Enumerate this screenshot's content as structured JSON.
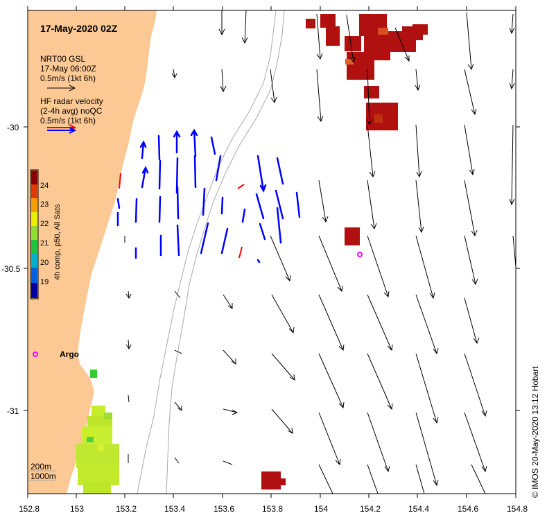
{
  "map": {
    "title": "17-May-2020 02Z",
    "model_legend": {
      "line1": "NRT00 GSL",
      "line2": "17-May 06:00Z",
      "line3": "0.5m/s (1kt 6h)"
    },
    "radar_legend": {
      "line1": "HF radar velocity",
      "line2": "(2-4h avg) noQC",
      "line3": "0.5m/s (1kt 6h)"
    },
    "colorbar": {
      "label": "4h comp, p50, All Sats",
      "ticks": [
        "24",
        "23",
        "22",
        "21",
        "20",
        "19"
      ]
    },
    "argo_label": "Argo",
    "depth_labels": {
      "a": "200m",
      "b": "1000m"
    },
    "credit": "© IMOS 20-May-2020 13:12 Hobart",
    "x_ticks": [
      "152.8",
      "153",
      "153.2",
      "153.4",
      "153.6",
      "153.8",
      "154",
      "154.2",
      "154.4",
      "154.6",
      "154.8"
    ],
    "y_ticks": [
      "-30",
      "-30.5",
      "-31"
    ],
    "colors": {
      "land": "#fcc894",
      "radar": "#0000ff",
      "argo": "#ff00ff"
    }
  }
}
